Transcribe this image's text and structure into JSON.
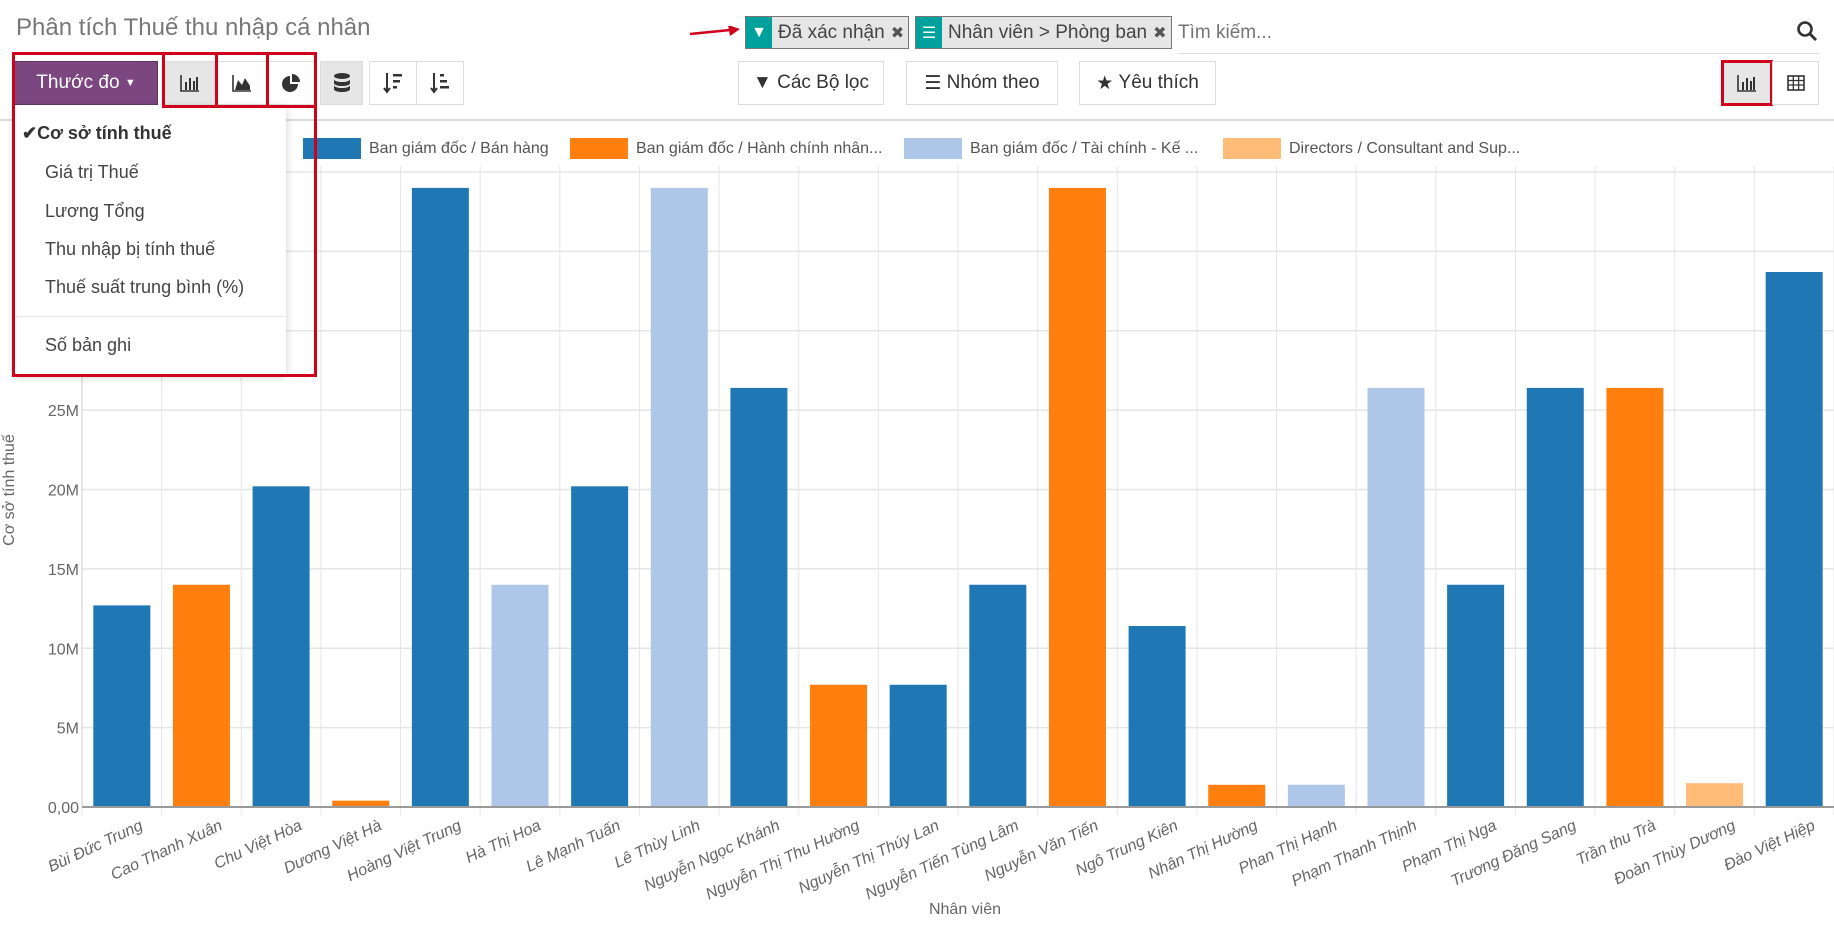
{
  "header": {
    "title": "Phân tích Thuế thu nhập cá nhân"
  },
  "search": {
    "facets": [
      {
        "icon": "filter-icon",
        "label": "Đã xác nhận"
      },
      {
        "icon": "group-by-icon",
        "label": "Nhân viên > Phòng ban"
      }
    ],
    "placeholder": "Tìm kiếm..."
  },
  "toolbar": {
    "measure_label": "Thước đo",
    "filters_label": "Các Bộ lọc",
    "groupby_label": "Nhóm theo",
    "favorites_label": "Yêu thích"
  },
  "measures": {
    "items": [
      "Cơ sở tính thuế",
      "Giá trị Thuế",
      "Lương Tổng",
      "Thu nhập bị tính thuế",
      "Thuế suất trung bình (%)"
    ],
    "selected": "Cơ sở tính thuế",
    "count_label": "Số bản ghi"
  },
  "colors": {
    "accent": "#7c4680",
    "facet": "#00a09d",
    "highlight": "#d0021b"
  },
  "chart_data": {
    "type": "bar",
    "xlabel": "Nhân viên",
    "ylabel": "Cơ sở tính thuế",
    "ylim": [
      0,
      40000000
    ],
    "yticks": [
      {
        "v": 0,
        "label": "0,00"
      },
      {
        "v": 5000000,
        "label": "5M"
      },
      {
        "v": 10000000,
        "label": "10M"
      },
      {
        "v": 15000000,
        "label": "15M"
      },
      {
        "v": 20000000,
        "label": "20M"
      },
      {
        "v": 25000000,
        "label": "25M"
      },
      {
        "v": 30000000,
        "label": ""
      },
      {
        "v": 35000000,
        "label": ""
      },
      {
        "v": 40000000,
        "label": ""
      }
    ],
    "series": [
      {
        "name": "Ban giám đốc / Bán hàng",
        "color": "#1f77b4"
      },
      {
        "name": "Ban giám đốc / Hành chính nhân...",
        "color": "#ff7f0e"
      },
      {
        "name": "Ban giám đốc / Tài chính - Kế ...",
        "color": "#aec7e8"
      },
      {
        "name": "Directors / Consultant and Sup...",
        "color": "#ffbb78"
      }
    ],
    "categories": [
      "Bùi Đức Trung",
      "Cao Thanh Xuân",
      "Chu Việt Hòa",
      "Dương Việt Hà",
      "Hoàng Việt Trung",
      "Hà Thị Hoa",
      "Lê Mạnh Tuấn",
      "Lê Thùy Linh",
      "Nguyễn Ngọc Khánh",
      "Nguyễn Thị Thu Hường",
      "Nguyễn Thị Thúy Lan",
      "Nguyễn Tiến Tùng Lâm",
      "Nguyễn Văn Tiến",
      "Ngô Trung Kiên",
      "Nhân Thị Hường",
      "Phan Thị Hạnh",
      "Phạm Thanh Thịnh",
      "Phạm Thị Nga",
      "Trương Đăng Sang",
      "Trần thu Trà",
      "Đoàn Thùy Dương",
      "Đào Việt Hiệp"
    ],
    "values": [
      12700000,
      14000000,
      20200000,
      400000,
      39000000,
      14000000,
      20200000,
      39000000,
      26400000,
      7700000,
      7700000,
      14000000,
      39000000,
      11400000,
      1400000,
      1400000,
      26400000,
      14000000,
      26400000,
      26400000,
      1500000,
      33700000
    ],
    "series_index": [
      0,
      1,
      0,
      1,
      0,
      2,
      0,
      2,
      0,
      1,
      0,
      0,
      1,
      0,
      1,
      2,
      2,
      0,
      0,
      1,
      3,
      0
    ]
  }
}
